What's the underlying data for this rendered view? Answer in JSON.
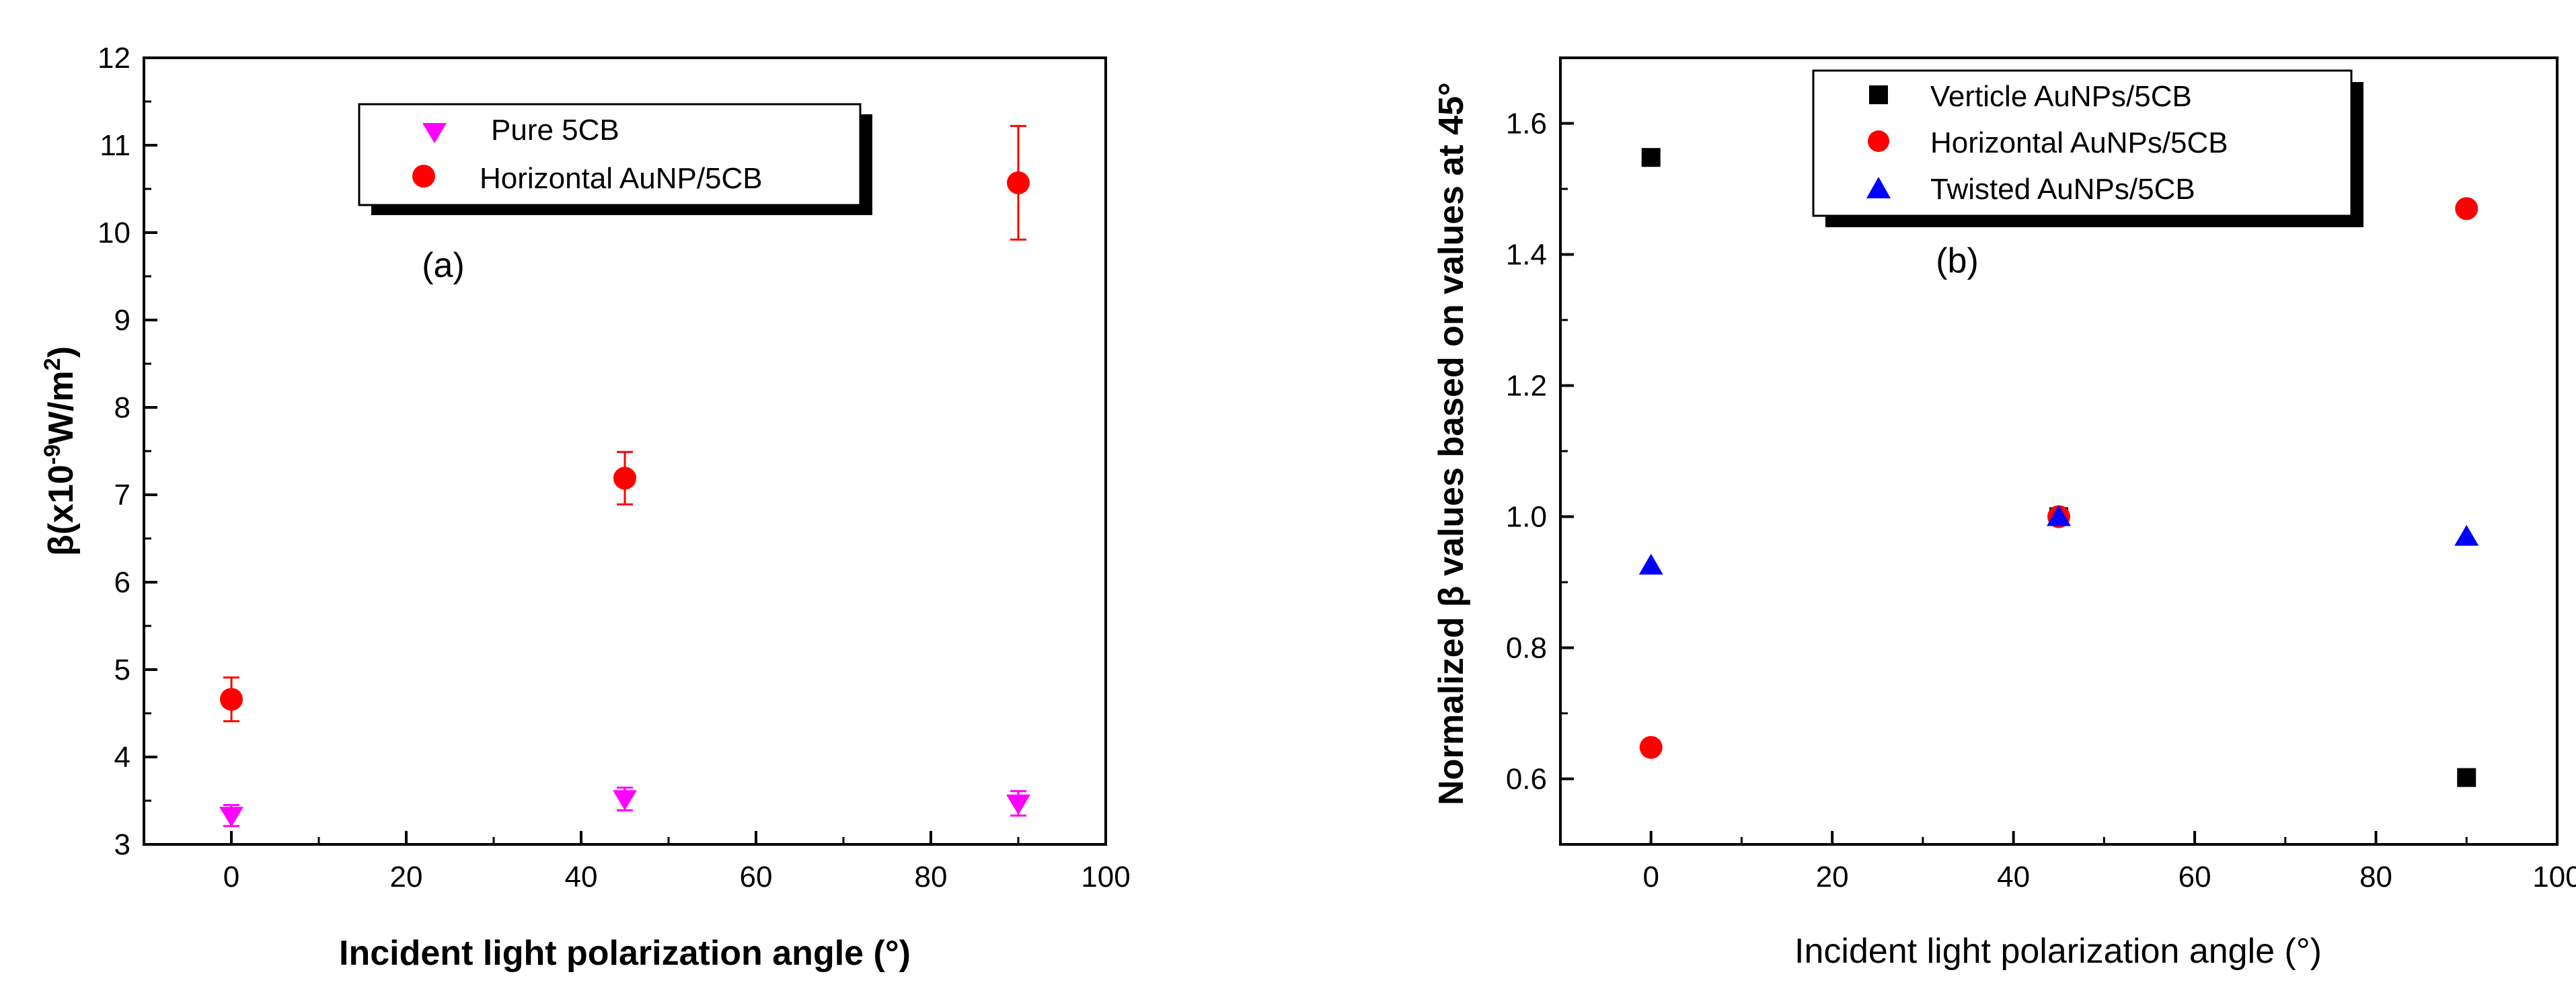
{
  "chart_data": [
    {
      "type": "scatter",
      "panel_label": "(a)",
      "title": "",
      "xlabel": "Incident light polarization angle (°)",
      "ylabel_parts": [
        "β(x10",
        "-9",
        "W/m",
        "2",
        ")"
      ],
      "xlim": [
        -10,
        100
      ],
      "ylim": [
        3,
        12
      ],
      "xticks": [
        0,
        20,
        40,
        60,
        80,
        100
      ],
      "yticks": [
        3,
        4,
        5,
        6,
        7,
        8,
        9,
        10,
        11,
        12
      ],
      "grid": false,
      "legend_position": "top-center",
      "series": [
        {
          "name": "Pure 5CB",
          "marker": "triangle-down",
          "color": "#ff00ff",
          "x": [
            0,
            45,
            90
          ],
          "values": [
            3.33,
            3.52,
            3.47
          ],
          "error": [
            0.12,
            0.13,
            0.14
          ]
        },
        {
          "name": "Horizontal AuNP/5CB",
          "marker": "circle",
          "color": "#ff0000",
          "x": [
            0,
            45,
            90
          ],
          "values": [
            4.66,
            7.19,
            10.57
          ],
          "error": [
            0.25,
            0.3,
            0.65
          ]
        }
      ]
    },
    {
      "type": "scatter",
      "panel_label": "(b)",
      "title": "",
      "xlabel": "Incident light polarization angle (°)",
      "ylabel": "Normalized β values based on values at 45°",
      "xlim": [
        -10,
        100
      ],
      "ylim": [
        0.5,
        1.7
      ],
      "xticks": [
        0,
        20,
        40,
        60,
        80,
        100
      ],
      "yticks": [
        0.6,
        0.8,
        1.0,
        1.2,
        1.4,
        1.6
      ],
      "grid": false,
      "legend_position": "top-center",
      "series": [
        {
          "name": "Verticle AuNPs/5CB",
          "marker": "square",
          "color": "#000000",
          "x": [
            0,
            45,
            90
          ],
          "values": [
            1.548,
            1.0,
            0.602
          ]
        },
        {
          "name": "Horizontal AuNPs/5CB",
          "marker": "circle",
          "color": "#ff0000",
          "x": [
            0,
            45,
            90
          ],
          "values": [
            0.648,
            1.0,
            1.47
          ]
        },
        {
          "name": "Twisted AuNPs/5CB",
          "marker": "triangle-up",
          "color": "#0000ff",
          "x": [
            0,
            45,
            90
          ],
          "values": [
            0.926,
            1.0,
            0.97
          ]
        }
      ]
    }
  ]
}
